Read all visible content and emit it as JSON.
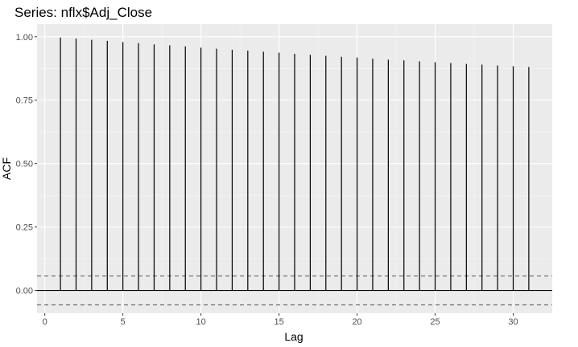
{
  "chart_data": {
    "type": "bar",
    "title": "Series: nflx$Adj_Close",
    "xlabel": "Lag",
    "ylabel": "ACF",
    "xlim": [
      -0.5,
      32.5
    ],
    "ylim": [
      -0.09,
      1.05
    ],
    "x_ticks": [
      0,
      5,
      10,
      15,
      20,
      25,
      30
    ],
    "x_tick_labels": [
      "0",
      "5",
      "10",
      "15",
      "20",
      "25",
      "30"
    ],
    "y_ticks": [
      0,
      0.25,
      0.5,
      0.75,
      1
    ],
    "y_tick_labels": [
      "0.00",
      "0.25",
      "0.50",
      "0.75",
      "1.00"
    ],
    "grid": true,
    "lags": [
      1,
      2,
      3,
      4,
      5,
      6,
      7,
      8,
      9,
      10,
      11,
      12,
      13,
      14,
      15,
      16,
      17,
      18,
      19,
      20,
      21,
      22,
      23,
      24,
      25,
      26,
      27,
      28,
      29,
      30,
      31
    ],
    "values": [
      0.997,
      0.993,
      0.988,
      0.984,
      0.979,
      0.975,
      0.97,
      0.966,
      0.962,
      0.957,
      0.953,
      0.949,
      0.945,
      0.941,
      0.937,
      0.933,
      0.929,
      0.925,
      0.921,
      0.918,
      0.914,
      0.91,
      0.907,
      0.903,
      0.9,
      0.897,
      0.893,
      0.89,
      0.887,
      0.884,
      0.881
    ],
    "confidence_bounds": [
      0.057,
      -0.057
    ],
    "colors": {
      "panel": "#ebebeb",
      "grid_major": "#ffffff",
      "bar": "#000000",
      "zero_line": "#000000",
      "bound_line": "#555555"
    }
  }
}
